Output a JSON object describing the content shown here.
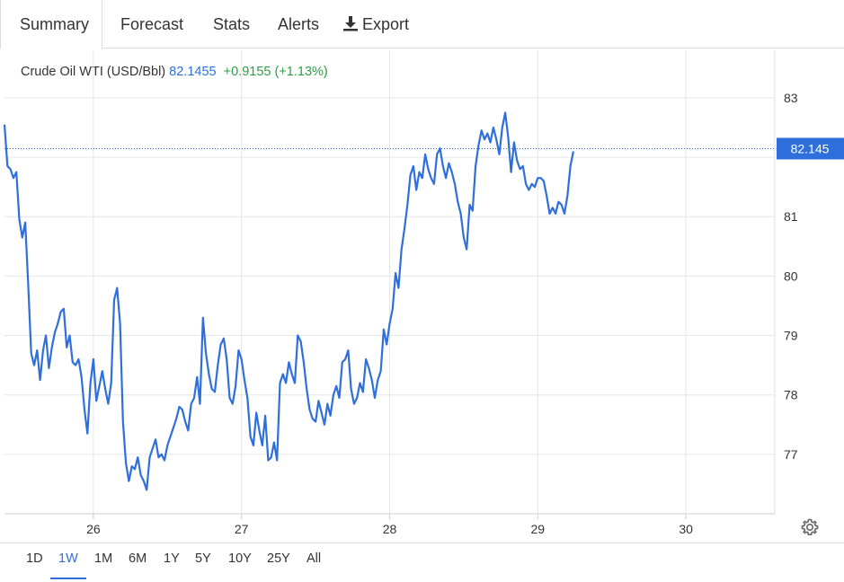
{
  "tabs": [
    {
      "label": "Summary",
      "active": true
    },
    {
      "label": "Forecast"
    },
    {
      "label": "Stats"
    },
    {
      "label": "Alerts"
    },
    {
      "label": "Export",
      "icon": "download-icon"
    }
  ],
  "legend": {
    "name": "Crude Oil WTI (USD/Bbl)",
    "value": "82.1455",
    "change": "+0.9155 (+1.13%)"
  },
  "colors": {
    "line": "#2f6fdc",
    "up": "#2ea043",
    "grid": "#e6e6e6",
    "text": "#333333"
  },
  "last_price_label": "82.145",
  "ranges": [
    "1D",
    "1W",
    "1M",
    "6M",
    "1Y",
    "5Y",
    "10Y",
    "25Y",
    "All"
  ],
  "active_range": "1W",
  "settings_icon": "gear-icon",
  "chart_data": {
    "type": "line",
    "series": [
      {
        "name": "Crude Oil WTI (USD/Bbl)",
        "points": [
          [
            25.4,
            82.55
          ],
          [
            25.42,
            81.85
          ],
          [
            25.44,
            81.8
          ],
          [
            25.46,
            81.65
          ],
          [
            25.48,
            81.75
          ],
          [
            25.5,
            80.95
          ],
          [
            25.52,
            80.65
          ],
          [
            25.54,
            80.9
          ],
          [
            25.56,
            79.85
          ],
          [
            25.58,
            78.7
          ],
          [
            25.6,
            78.5
          ],
          [
            25.62,
            78.75
          ],
          [
            25.64,
            78.25
          ],
          [
            25.66,
            78.75
          ],
          [
            25.68,
            79.0
          ],
          [
            25.7,
            78.45
          ],
          [
            25.72,
            78.8
          ],
          [
            25.74,
            79.05
          ],
          [
            25.76,
            79.2
          ],
          [
            25.78,
            79.4
          ],
          [
            25.8,
            79.45
          ],
          [
            25.82,
            78.8
          ],
          [
            25.84,
            79.0
          ],
          [
            25.86,
            78.55
          ],
          [
            25.88,
            78.5
          ],
          [
            25.9,
            78.6
          ],
          [
            25.92,
            78.3
          ],
          [
            25.94,
            77.75
          ],
          [
            25.96,
            77.35
          ],
          [
            25.98,
            78.2
          ],
          [
            26.0,
            78.6
          ],
          [
            26.02,
            77.9
          ],
          [
            26.04,
            78.15
          ],
          [
            26.06,
            78.4
          ],
          [
            26.08,
            78.1
          ],
          [
            26.1,
            77.85
          ],
          [
            26.12,
            78.2
          ],
          [
            26.14,
            79.6
          ],
          [
            26.16,
            79.8
          ],
          [
            26.18,
            79.2
          ],
          [
            26.2,
            77.55
          ],
          [
            26.22,
            76.85
          ],
          [
            26.24,
            76.55
          ],
          [
            26.26,
            76.8
          ],
          [
            26.28,
            76.75
          ],
          [
            26.3,
            76.95
          ],
          [
            26.32,
            76.65
          ],
          [
            26.34,
            76.55
          ],
          [
            26.36,
            76.4
          ],
          [
            26.38,
            76.95
          ],
          [
            26.4,
            77.1
          ],
          [
            26.42,
            77.25
          ],
          [
            26.44,
            76.95
          ],
          [
            26.46,
            77.0
          ],
          [
            26.48,
            76.9
          ],
          [
            26.5,
            77.15
          ],
          [
            26.52,
            77.3
          ],
          [
            26.54,
            77.45
          ],
          [
            26.56,
            77.6
          ],
          [
            26.58,
            77.8
          ],
          [
            26.6,
            77.75
          ],
          [
            26.62,
            77.55
          ],
          [
            26.64,
            77.4
          ],
          [
            26.66,
            77.85
          ],
          [
            26.68,
            77.95
          ],
          [
            26.7,
            78.3
          ],
          [
            26.72,
            77.85
          ],
          [
            26.74,
            79.3
          ],
          [
            26.76,
            78.7
          ],
          [
            26.78,
            78.35
          ],
          [
            26.8,
            78.1
          ],
          [
            26.82,
            78.05
          ],
          [
            26.84,
            78.5
          ],
          [
            26.86,
            78.85
          ],
          [
            26.88,
            78.95
          ],
          [
            26.9,
            78.6
          ],
          [
            26.92,
            77.95
          ],
          [
            26.94,
            77.85
          ],
          [
            26.96,
            78.15
          ],
          [
            26.98,
            78.75
          ],
          [
            27.0,
            78.6
          ],
          [
            27.02,
            78.25
          ],
          [
            27.04,
            77.95
          ],
          [
            27.06,
            77.3
          ],
          [
            27.08,
            77.15
          ],
          [
            27.1,
            77.7
          ],
          [
            27.12,
            77.4
          ],
          [
            27.14,
            77.15
          ],
          [
            27.16,
            77.65
          ],
          [
            27.18,
            76.9
          ],
          [
            27.2,
            76.95
          ],
          [
            27.22,
            77.2
          ],
          [
            27.24,
            76.9
          ],
          [
            27.26,
            78.2
          ],
          [
            27.28,
            78.35
          ],
          [
            27.3,
            78.2
          ],
          [
            27.32,
            78.55
          ],
          [
            27.34,
            78.35
          ],
          [
            27.36,
            78.2
          ],
          [
            27.38,
            79.0
          ],
          [
            27.4,
            78.9
          ],
          [
            27.42,
            78.55
          ],
          [
            27.44,
            78.1
          ],
          [
            27.46,
            77.75
          ],
          [
            27.48,
            77.6
          ],
          [
            27.5,
            77.55
          ],
          [
            27.52,
            77.9
          ],
          [
            27.54,
            77.7
          ],
          [
            27.56,
            77.5
          ],
          [
            27.58,
            77.85
          ],
          [
            27.6,
            77.65
          ],
          [
            27.62,
            78.0
          ],
          [
            27.64,
            78.15
          ],
          [
            27.66,
            77.95
          ],
          [
            27.68,
            78.55
          ],
          [
            27.7,
            78.6
          ],
          [
            27.72,
            78.75
          ],
          [
            27.74,
            78.1
          ],
          [
            27.76,
            77.85
          ],
          [
            27.78,
            77.95
          ],
          [
            27.8,
            78.2
          ],
          [
            27.82,
            78.05
          ],
          [
            27.84,
            78.6
          ],
          [
            27.86,
            78.45
          ],
          [
            27.88,
            78.25
          ],
          [
            27.9,
            77.95
          ],
          [
            27.92,
            78.25
          ],
          [
            27.94,
            78.4
          ],
          [
            27.96,
            79.1
          ],
          [
            27.98,
            78.85
          ],
          [
            28.0,
            79.2
          ],
          [
            28.02,
            79.45
          ],
          [
            28.04,
            80.05
          ],
          [
            28.06,
            79.8
          ],
          [
            28.08,
            80.45
          ],
          [
            28.1,
            80.8
          ],
          [
            28.12,
            81.2
          ],
          [
            28.14,
            81.7
          ],
          [
            28.16,
            81.85
          ],
          [
            28.18,
            81.45
          ],
          [
            28.2,
            81.75
          ],
          [
            28.22,
            81.65
          ],
          [
            28.24,
            82.05
          ],
          [
            28.26,
            81.8
          ],
          [
            28.28,
            81.65
          ],
          [
            28.3,
            81.55
          ],
          [
            28.32,
            82.05
          ],
          [
            28.34,
            82.15
          ],
          [
            28.36,
            81.85
          ],
          [
            28.38,
            81.65
          ],
          [
            28.4,
            81.9
          ],
          [
            28.42,
            81.75
          ],
          [
            28.44,
            81.55
          ],
          [
            28.46,
            81.25
          ],
          [
            28.48,
            81.05
          ],
          [
            28.5,
            80.65
          ],
          [
            28.52,
            80.45
          ],
          [
            28.54,
            81.2
          ],
          [
            28.56,
            81.1
          ],
          [
            28.58,
            81.85
          ],
          [
            28.6,
            82.2
          ],
          [
            28.62,
            82.45
          ],
          [
            28.64,
            82.3
          ],
          [
            28.66,
            82.4
          ],
          [
            28.68,
            82.25
          ],
          [
            28.7,
            82.5
          ],
          [
            28.72,
            82.3
          ],
          [
            28.74,
            82.05
          ],
          [
            28.76,
            82.5
          ],
          [
            28.78,
            82.75
          ],
          [
            28.8,
            82.35
          ],
          [
            28.82,
            81.75
          ],
          [
            28.84,
            82.25
          ],
          [
            28.86,
            81.95
          ],
          [
            28.88,
            81.8
          ],
          [
            28.9,
            81.85
          ],
          [
            28.92,
            81.55
          ],
          [
            28.94,
            81.45
          ],
          [
            28.96,
            81.55
          ],
          [
            28.98,
            81.5
          ],
          [
            29.0,
            81.65
          ],
          [
            29.02,
            81.65
          ],
          [
            29.04,
            81.6
          ],
          [
            29.06,
            81.35
          ],
          [
            29.08,
            81.05
          ],
          [
            29.1,
            81.15
          ],
          [
            29.12,
            81.05
          ],
          [
            29.14,
            81.25
          ],
          [
            29.16,
            81.2
          ],
          [
            29.18,
            81.05
          ],
          [
            29.2,
            81.35
          ],
          [
            29.22,
            81.85
          ],
          [
            29.24,
            82.1
          ]
        ]
      }
    ],
    "x_domain": [
      25.4,
      30.6
    ],
    "x_ticks": [
      {
        "value": 26,
        "label": "26"
      },
      {
        "value": 27,
        "label": "27"
      },
      {
        "value": 28,
        "label": "28"
      },
      {
        "value": 29,
        "label": "29"
      },
      {
        "value": 30,
        "label": "30"
      }
    ],
    "y_domain": [
      76.0,
      83.8
    ],
    "y_ticks": [
      77,
      78,
      79,
      80,
      81,
      82,
      83
    ],
    "y_tick_labels_shown": [
      "77",
      "78",
      "79",
      "80",
      "81",
      "83"
    ],
    "grid": true,
    "last_value": 82.145
  }
}
